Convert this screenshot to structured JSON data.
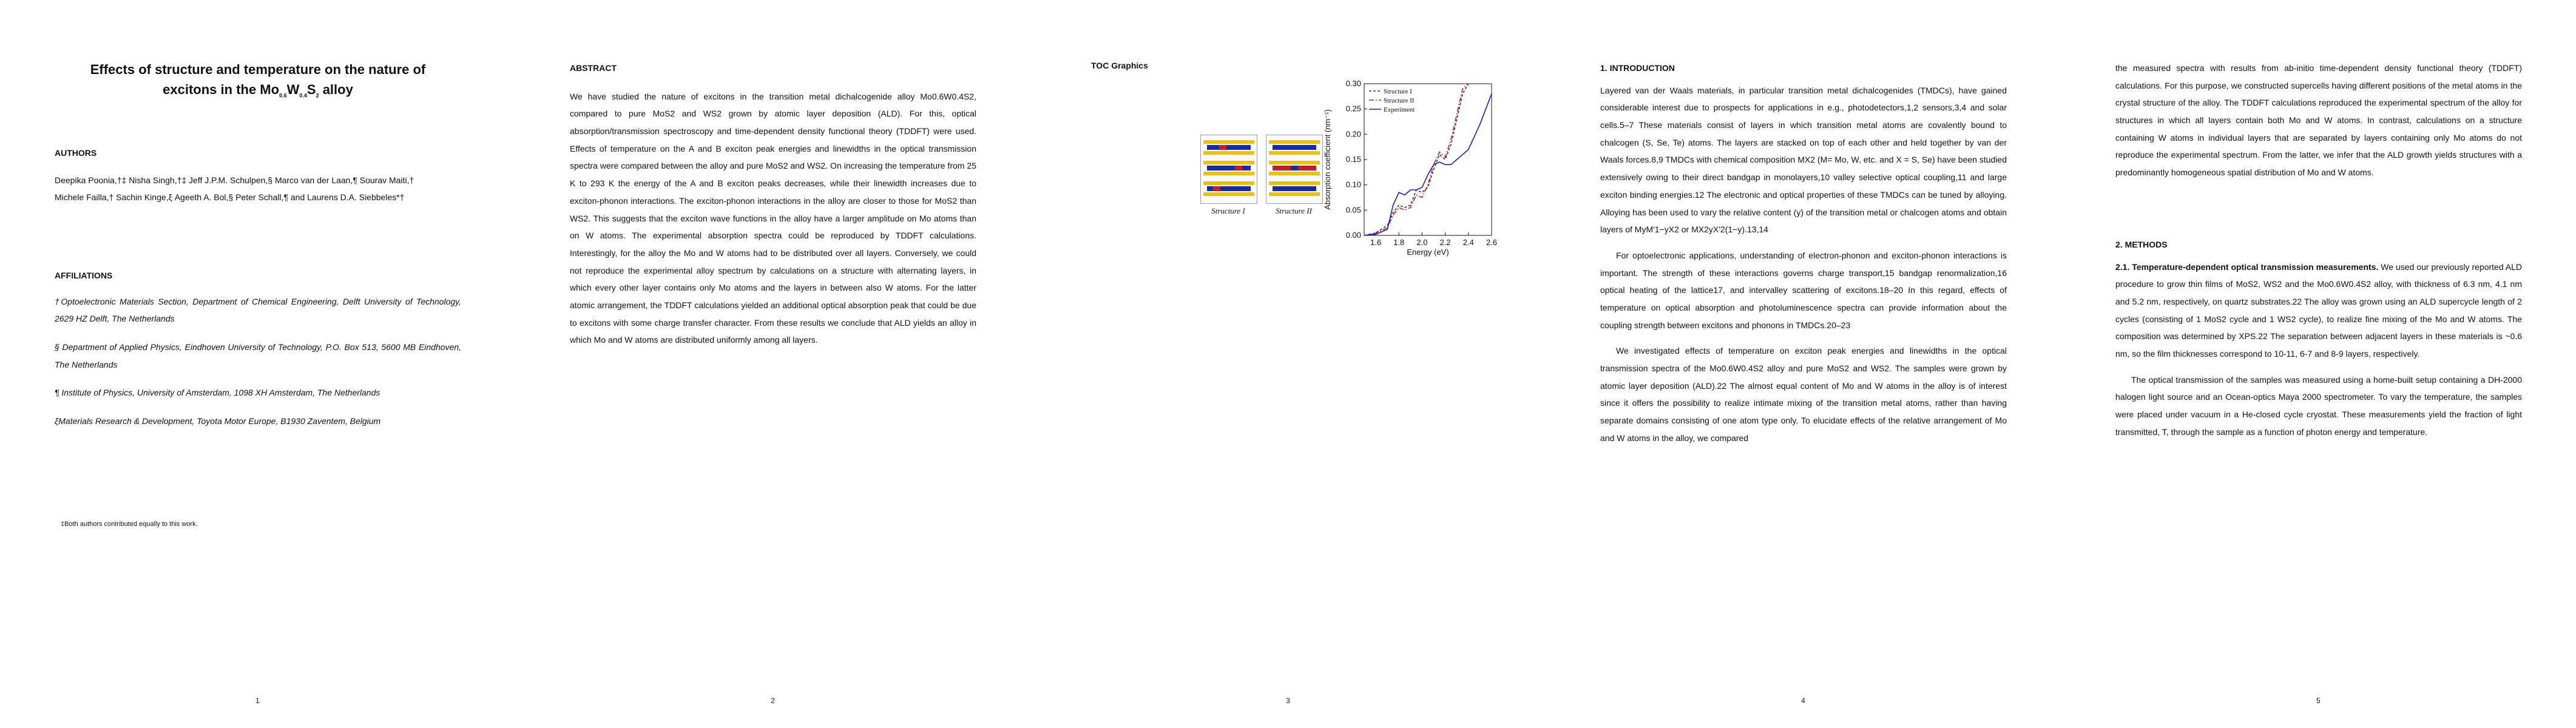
{
  "page1": {
    "title_line1": "Effects of structure and temperature on the nature of",
    "title_line2_prefix": "excitons in the Mo",
    "title_sub1": "0.6",
    "title_mid1": "W",
    "title_sub2": "0.4",
    "title_mid2": "S",
    "title_sub3": "2",
    "title_suffix": " alloy",
    "authors_heading": "AUTHORS",
    "authors_line1": "Deepika Poonia,†‡ Nisha Singh,†‡ Jeff J.P.M. Schulpen,§ Marco van der Laan,¶ Sourav Maiti,†",
    "authors_line2": "Michele Failla,† Sachin Kinge,ξ Ageeth A. Bol,§ Peter Schall,¶ and Laurens D.A. Siebbeles*†",
    "affiliations_heading": "AFFILIATIONS",
    "aff1": "†Optoelectronic Materials Section, Department of Chemical Engineering, Delft University of Technology, 2629 HZ Delft, The Netherlands",
    "aff2": "§ Department of Applied Physics, Eindhoven University of Technology, P.O. Box 513, 5600 MB Eindhoven, The Netherlands",
    "aff3": "¶ Institute of Physics, University of Amsterdam, 1098 XH Amsterdam, The Netherlands",
    "aff4": "ξMaterials Research & Development, Toyota Motor Europe, B1930 Zaventem, Belgium",
    "footnote": "‡Both authors contributed equally to this work.",
    "page_number": "1"
  },
  "page2": {
    "heading": "ABSTRACT",
    "body": "We have studied the nature of excitons in the transition metal dichalcogenide alloy Mo0.6W0.4S2, compared to pure MoS2 and WS2 grown by atomic layer deposition (ALD). For this, optical absorption/transmission spectroscopy and time-dependent density functional theory (TDDFT) were used. Effects of temperature on the A and B exciton peak energies and linewidths in the optical transmission spectra were compared between the alloy and pure MoS2 and WS2. On increasing the temperature from 25 K to 293 K the energy of the A and B exciton peaks decreases, while their linewidth increases due to exciton-phonon interactions. The exciton-phonon interactions in the alloy are closer to those for MoS2 than WS2. This suggests that the exciton wave functions in the alloy have a larger amplitude on Mo atoms than on W atoms. The experimental absorption spectra could be reproduced by TDDFT calculations. Interestingly, for the alloy the Mo and W atoms had to be distributed over all layers. Conversely, we could not reproduce the experimental alloy spectrum by calculations on a structure with alternating layers, in which every other layer contains only Mo atoms and the layers in between also W atoms. For the latter atomic arrangement, the TDDFT calculations yielded an additional optical absorption peak that could be due to excitons with some charge transfer character. From these results we conclude that ALD yields an alloy in which Mo and W atoms are distributed uniformly among all layers.",
    "page_number": "2"
  },
  "page3": {
    "heading": "TOC Graphics",
    "structure1_label": "Structure I",
    "structure2_label": "Structure II",
    "page_number": "3"
  },
  "page4": {
    "heading": "1.   INTRODUCTION",
    "para1": "Layered van der Waals materials, in particular transition metal dichalcogenides (TMDCs), have gained considerable interest due to prospects for applications in e.g., photodetectors,1,2 sensors,3,4 and solar cells.5–7 These materials consist of layers in which transition metal atoms are covalently bound to chalcogen (S, Se, Te) atoms. The layers are stacked on top of each other and held together by van der Waals forces.8,9 TMDCs with chemical composition MX2 (M= Mo, W, etc. and X = S, Se) have been studied extensively owing to their direct bandgap in monolayers,10 valley selective optical coupling,11 and large exciton binding energies.12 The electronic and optical properties of these TMDCs can be tuned by alloying. Alloying has been used to vary the relative content (y) of the transition metal or chalcogen atoms and obtain layers of MyM'1−yX2 or MX2yX'2(1−y).13,14",
    "para2": "For optoelectronic applications, understanding of electron-phonon and exciton-phonon interactions is important. The strength of these interactions governs charge transport,15 bandgap renormalization,16 optical heating of the lattice17, and intervalley scattering of excitons.18–20 In this regard, effects of temperature on optical absorption and photoluminescence spectra can provide information about the coupling strength between excitons and phonons in TMDCs.20–23",
    "para3": "We investigated effects of temperature on exciton peak energies and linewidths in the optical transmission spectra of the Mo0.6W0.4S2 alloy and pure MoS2 and WS2. The samples were grown by atomic layer deposition (ALD).22 The almost equal content of Mo and W atoms in the alloy is of interest since it offers the possibility to realize intimate mixing of the transition metal atoms, rather than having separate domains consisting of one atom type only. To elucidate effects of the relative arrangement of Mo and W atoms in the alloy, we compared",
    "page_number": "4"
  },
  "page5": {
    "para1": "the measured spectra with results from ab-initio time-dependent density functional theory (TDDFT) calculations. For this purpose, we constructed supercells having different positions of the metal atoms in the crystal structure of the alloy. The TDDFT calculations reproduced the experimental spectrum of the alloy for structures in which all layers contain both Mo and W atoms. In contrast, calculations on a structure containing W atoms in individual layers that are separated by layers containing only Mo atoms do not reproduce the experimental spectrum. From the latter, we infer that the ALD growth yields structures with a predominantly homogeneous spatial distribution of Mo and W atoms.",
    "heading": "2.   METHODS",
    "subheading": "2.1. Temperature-dependent optical transmission measurements.",
    "para2": " We used our previously reported ALD procedure to grow thin films of MoS2, WS2 and the Mo0.6W0.4S2 alloy, with thickness of 6.3 nm, 4.1 nm and 5.2 nm, respectively, on quartz substrates.22 The alloy was grown using an ALD supercycle length of 2 cycles (consisting of 1 MoS2 cycle and 1 WS2 cycle), to realize fine mixing of the Mo and W atoms. The composition was determined by XPS.22 The separation between adjacent layers in these materials is ~0.6 nm, so the film thicknesses correspond to 10-11, 6-7 and 8-9 layers, respectively.",
    "para3": "The optical transmission of the samples was measured using a home-built setup containing a DH-2000 halogen light source and an Ocean-optics Maya 2000 spectrometer. To vary the temperature, the samples were placed under vacuum in a He-closed cycle cryostat. These measurements yield the fraction of light transmitted, T, through the sample as a function of photon energy and temperature.",
    "page_number": "5"
  },
  "chart_data": {
    "type": "line",
    "xlabel": "Energy (eV)",
    "ylabel": "Absorption coefficient (nm⁻¹)",
    "xlim": [
      1.5,
      2.6
    ],
    "ylim": [
      0.0,
      0.3
    ],
    "xticks": [
      "1.6",
      "1.8",
      "2.0",
      "2.2",
      "2.4",
      "2.6"
    ],
    "yticks": [
      "0.00",
      "0.05",
      "0.10",
      "0.15",
      "0.20",
      "0.25",
      "0.30"
    ],
    "legend_position": "top-left",
    "series": [
      {
        "name": "Structure I",
        "color": "#333333",
        "dash": "4,3",
        "x": [
          1.5,
          1.6,
          1.7,
          1.75,
          1.8,
          1.85,
          1.9,
          1.95,
          2.0,
          2.05,
          2.1,
          2.15,
          2.2,
          2.25,
          2.3,
          2.35,
          2.4
        ],
        "y": [
          0.0,
          0.005,
          0.02,
          0.045,
          0.06,
          0.055,
          0.06,
          0.09,
          0.085,
          0.095,
          0.13,
          0.16,
          0.15,
          0.18,
          0.23,
          0.28,
          0.3
        ]
      },
      {
        "name": "Structure II",
        "color": "#c0202a",
        "dash": "8,3,2,3",
        "x": [
          1.5,
          1.6,
          1.7,
          1.75,
          1.8,
          1.85,
          1.9,
          1.95,
          2.0,
          2.05,
          2.1,
          2.15,
          2.2,
          2.25,
          2.3,
          2.35,
          2.4
        ],
        "y": [
          0.0,
          0.004,
          0.015,
          0.04,
          0.055,
          0.05,
          0.055,
          0.08,
          0.075,
          0.1,
          0.14,
          0.165,
          0.155,
          0.19,
          0.24,
          0.29,
          0.3
        ]
      },
      {
        "name": "Experiment",
        "color": "#1a1acc",
        "dash": "",
        "x": [
          1.5,
          1.6,
          1.7,
          1.75,
          1.8,
          1.85,
          1.9,
          1.95,
          2.0,
          2.05,
          2.1,
          2.15,
          2.2,
          2.25,
          2.3,
          2.35,
          2.4,
          2.5,
          2.6
        ],
        "y": [
          0.0,
          0.002,
          0.012,
          0.06,
          0.085,
          0.08,
          0.09,
          0.09,
          0.095,
          0.12,
          0.14,
          0.145,
          0.14,
          0.14,
          0.15,
          0.16,
          0.17,
          0.22,
          0.28
        ]
      }
    ]
  }
}
